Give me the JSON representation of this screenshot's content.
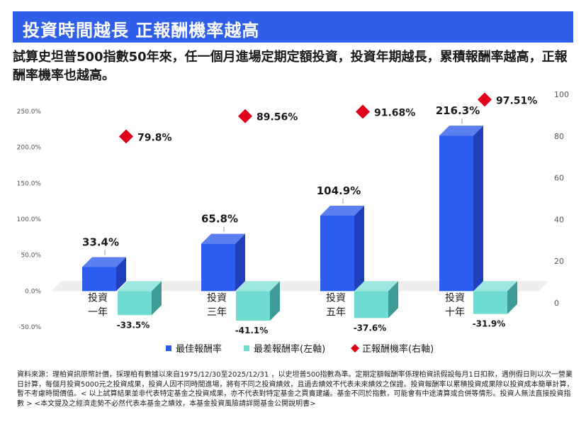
{
  "header": {
    "title": "投資時間越長 正報酬機率越高",
    "subtitle": "試算史坦普500指數50年來，任一個月進場定期定額投資，投資年期越長，累積報酬率越高，正報酬率機率也越高。"
  },
  "colors": {
    "banner": "#2f5fe8",
    "best_front": "#2c5cf0",
    "best_top": "#5c7ff0",
    "best_side": "#1f3fbf",
    "worst_front": "#6fdcd2",
    "worst_top": "#9ce8e0",
    "worst_side": "#3d9c95",
    "diamond": "#e0001a"
  },
  "chart_data": {
    "type": "bar",
    "categories": [
      [
        "投資",
        "一年"
      ],
      [
        "投資",
        "三年"
      ],
      [
        "投資",
        "五年"
      ],
      [
        "投資",
        "十年"
      ]
    ],
    "series": [
      {
        "name": "最佳報酬率",
        "axis": "left",
        "values": [
          33.4,
          65.8,
          104.9,
          216.3
        ],
        "labels": [
          "33.4%",
          "65.8%",
          "104.9%",
          "216.3%"
        ]
      },
      {
        "name": "最差報酬率(左軸)",
        "axis": "left",
        "values": [
          -33.5,
          -41.1,
          -37.6,
          -31.9
        ],
        "labels": [
          "-33.5%",
          "-41.1%",
          "-37.6%",
          "-31.9%"
        ]
      },
      {
        "name": "正報酬機率(右軸)",
        "axis": "right",
        "type": "scatter",
        "marker": "diamond",
        "values": [
          79.8,
          89.56,
          91.68,
          97.51
        ],
        "labels": [
          "79.8%",
          "89.56%",
          "91.68%",
          "97.51%"
        ]
      }
    ],
    "y_left": {
      "ticks": [
        "250.0%",
        "200.0%",
        "150.0%",
        "100.0%",
        "50.0%",
        "0.0%",
        "-50.0%"
      ],
      "min": -50,
      "max": 250
    },
    "y_right": {
      "ticks": [
        "100",
        "80",
        "60",
        "40",
        "20",
        "0"
      ],
      "min": 0,
      "max": 100
    },
    "grid": false,
    "legend_position": "bottom"
  },
  "footnote": "資料來源：理柏資訊原幣計價，採理柏有數據以來自1975/12/30至2025/12/31 ，以史坦普500指數為準。定期定額報酬率係理柏資訊假設每月1日扣款，遇例假日則以次一營業日計算，每個月投資5000元之投資成果，投資人因不同時間進場，將有不同之投資績效，且過去績效不代表未來績效之保證。投資報酬率以累積投資成果除以投資成本簡單計算，暫不考慮時間價值。< 以上試算結果並非代表特定基金之投資成果，亦不代表對特定基金之買賣建議。基金不同於指數，可能會有中途清算或合併等情形。投資人無法直接投資指數 > <本文提及之經濟走勢不必然代表本基金之績效，本基金投資風險請詳閱基金公開說明書>"
}
